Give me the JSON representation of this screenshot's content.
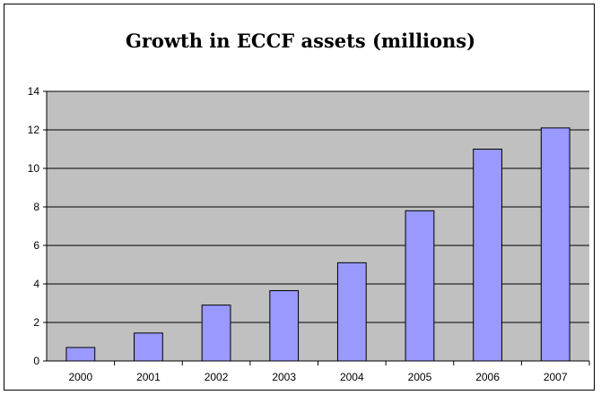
{
  "chart_data": {
    "type": "bar",
    "title": "Growth in ECCF assets (millions)",
    "xlabel": "",
    "ylabel": "",
    "categories": [
      "2000",
      "2001",
      "2002",
      "2003",
      "2004",
      "2005",
      "2006",
      "2007"
    ],
    "values": [
      0.7,
      1.45,
      2.9,
      3.65,
      5.1,
      7.8,
      11.0,
      12.1
    ],
    "ylim": [
      0,
      14
    ],
    "y_ticks": [
      0,
      2,
      4,
      6,
      8,
      10,
      12,
      14
    ],
    "grid": true,
    "legend": "none",
    "colors": {
      "plot_background": "#c0c0c0",
      "bar_fill": "#9999ff",
      "bar_stroke": "#000000",
      "gridline": "#000000"
    }
  }
}
